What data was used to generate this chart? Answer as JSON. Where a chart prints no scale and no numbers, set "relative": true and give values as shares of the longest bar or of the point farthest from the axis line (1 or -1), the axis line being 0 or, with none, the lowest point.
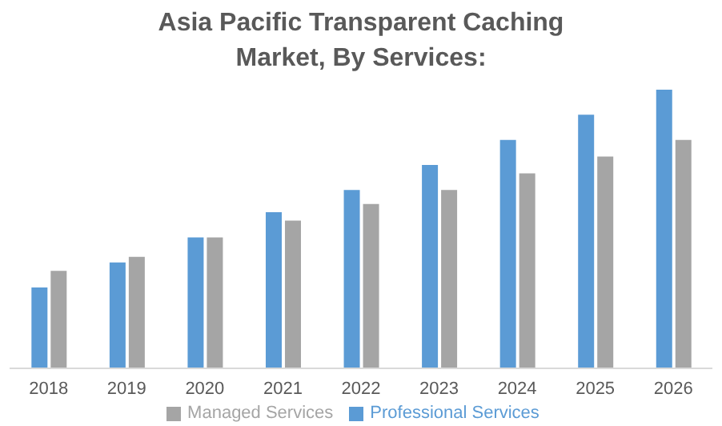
{
  "chart_data": {
    "type": "bar",
    "title": "Asia Pacific Transparent Caching Market, By Services:",
    "relative": true,
    "categories": [
      "2018",
      "2019",
      "2020",
      "2021",
      "2022",
      "2023",
      "2024",
      "2025",
      "2026"
    ],
    "series": [
      {
        "name": "Professional Services",
        "color": "#5b9bd5",
        "values": [
          0.29,
          0.38,
          0.47,
          0.56,
          0.64,
          0.73,
          0.82,
          0.91,
          1
        ]
      },
      {
        "name": "Managed Services",
        "color": "#a5a5a5",
        "values": [
          0.35,
          0.4,
          0.47,
          0.53,
          0.59,
          0.64,
          0.7,
          0.76,
          0.82
        ]
      }
    ],
    "legend": "bottom",
    "grid": false
  }
}
